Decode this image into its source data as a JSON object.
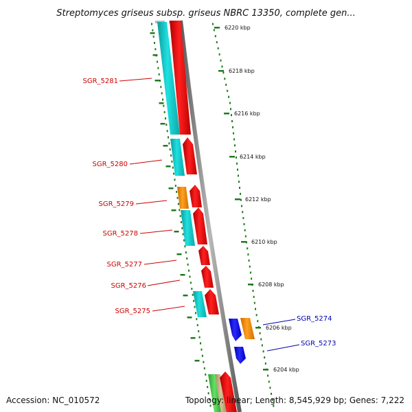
{
  "title": "Streptomyces griseus subsp. griseus NBRC 13350, complete gen...",
  "footer": {
    "accession": "Accession: NC_010572",
    "stats": "Topology: linear; Length: 8,545,929 bp; Genes: 7,222"
  },
  "ruler_ticks": [
    {
      "label": "6220 kbp"
    },
    {
      "label": "6218 kbp"
    },
    {
      "label": "6216 kbp"
    },
    {
      "label": "6214 kbp"
    },
    {
      "label": "6212 kbp"
    },
    {
      "label": "6210 kbp"
    },
    {
      "label": "6208 kbp"
    },
    {
      "label": "6206 kbp"
    },
    {
      "label": "6204 kbp"
    }
  ],
  "gene_labels": [
    {
      "name": "SGR_5281",
      "strand": "reverse"
    },
    {
      "name": "SGR_5280",
      "strand": "reverse"
    },
    {
      "name": "SGR_5279",
      "strand": "reverse"
    },
    {
      "name": "SGR_5278",
      "strand": "reverse"
    },
    {
      "name": "SGR_5277",
      "strand": "reverse"
    },
    {
      "name": "SGR_5276",
      "strand": "reverse"
    },
    {
      "name": "SGR_5275",
      "strand": "reverse"
    },
    {
      "name": "SGR_5274",
      "strand": "forward"
    },
    {
      "name": "SGR_5273",
      "strand": "forward"
    }
  ],
  "colors": {
    "reverse_label": "#cc0000",
    "forward_label": "#0000aa",
    "cds_red": "#ff1010",
    "cds_cyan": "#16c9c9",
    "cds_orange": "#ff8c00",
    "cds_blue": "#1a1aff",
    "cds_green": "#4cd24c",
    "cds_tan": "#c8b48a",
    "backbone": "#808080",
    "ruler": "#1e7a1e"
  }
}
